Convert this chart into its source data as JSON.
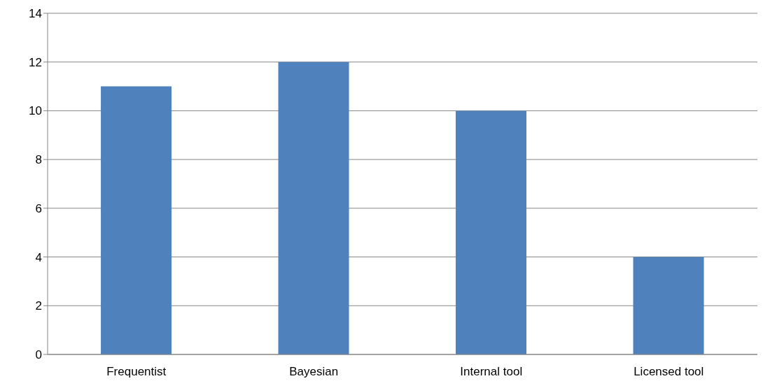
{
  "chart_data": {
    "type": "bar",
    "categories": [
      "Frequentist",
      "Bayesian",
      "Internal tool",
      "Licensed tool"
    ],
    "values": [
      11,
      12,
      10,
      4
    ],
    "color": "#4f81bd",
    "ylim": [
      0,
      14
    ],
    "yticks": [
      0,
      2,
      4,
      6,
      8,
      10,
      12,
      14
    ],
    "grid": "y",
    "legend": false
  }
}
